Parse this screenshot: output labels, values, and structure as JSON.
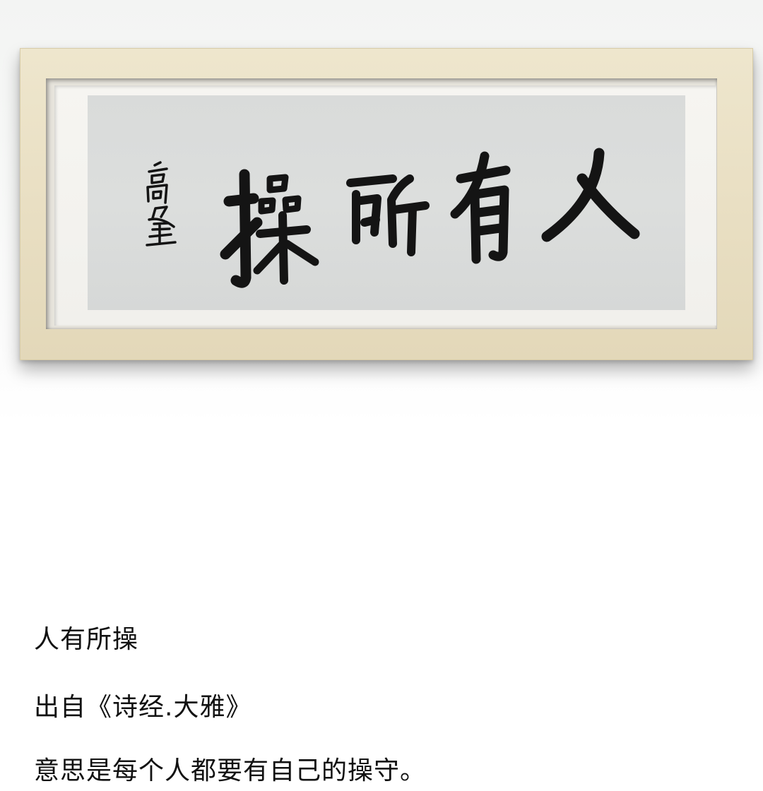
{
  "artwork": {
    "title_characters": [
      "人",
      "有",
      "所",
      "操"
    ],
    "signature": "高峯"
  },
  "captions": {
    "line1": "人有所操",
    "line2": "出自《诗经.大雅》",
    "line3": "意思是每个人都要有自己的操守。"
  },
  "colors": {
    "frame": "#e9dfc3",
    "paper": "#d9dbda",
    "ink": "#141414",
    "text": "#111111"
  }
}
